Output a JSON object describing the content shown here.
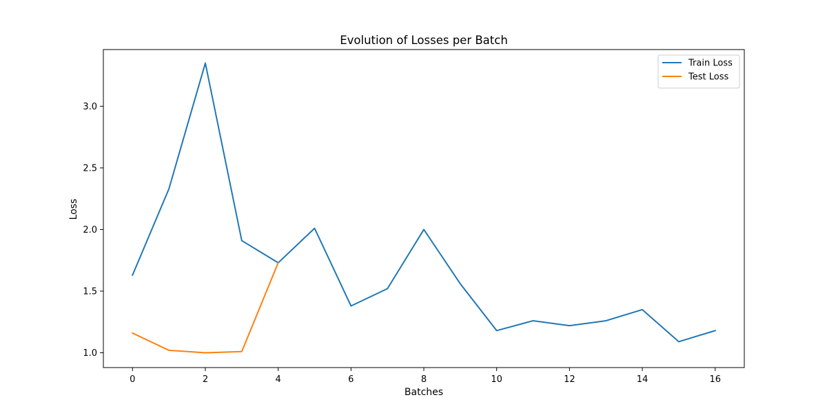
{
  "chart_data": {
    "type": "line",
    "title": "Evolution of Losses per Batch",
    "xlabel": "Batches",
    "ylabel": "Loss",
    "xlim": [
      -0.8,
      16.8
    ],
    "ylim": [
      0.88,
      3.46
    ],
    "xticks": [
      0,
      2,
      4,
      6,
      8,
      10,
      12,
      14,
      16
    ],
    "xtick_labels": [
      "0",
      "2",
      "4",
      "6",
      "8",
      "10",
      "12",
      "14",
      "16"
    ],
    "yticks": [
      1.0,
      1.5,
      2.0,
      2.5,
      3.0
    ],
    "ytick_labels": [
      "1.0",
      "1.5",
      "2.0",
      "2.5",
      "3.0"
    ],
    "grid": false,
    "legend_position": "top-right",
    "series": [
      {
        "name": "Train Loss",
        "color": "#1f77b4",
        "x": [
          0,
          1,
          2,
          3,
          4,
          5,
          6,
          7,
          8,
          9,
          10,
          11,
          12,
          13,
          14,
          15,
          16
        ],
        "y": [
          1.63,
          2.33,
          3.35,
          1.91,
          1.73,
          2.01,
          1.38,
          1.52,
          2.0,
          1.56,
          1.18,
          1.26,
          1.22,
          1.26,
          1.35,
          1.09,
          1.18
        ]
      },
      {
        "name": "Test Loss",
        "color": "#ff7f0e",
        "x": [
          0,
          1,
          2,
          3,
          4
        ],
        "y": [
          1.16,
          1.02,
          1.0,
          1.01,
          1.73
        ]
      }
    ]
  }
}
